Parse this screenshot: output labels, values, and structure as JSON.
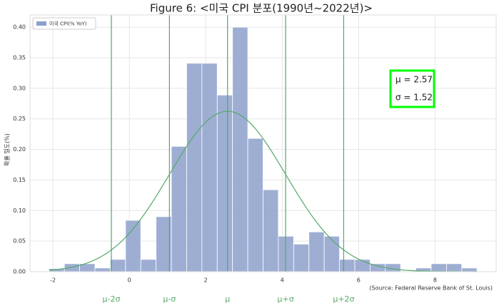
{
  "chart_data": {
    "type": "histogram",
    "title": "Figure 6: <미국 CPI 분포(1990년~2022년)>",
    "ylabel": "확률 밀도(%)",
    "source": "(Source: Federal Reserve Bank of St. Louis)",
    "series": [
      {
        "name": "미국 CPI(% YoY)",
        "color": "#8da0cb",
        "bins": [
          -2.1,
          -1.7,
          -1.3,
          -0.9,
          -0.5,
          -0.1,
          0.3,
          0.7,
          1.1,
          1.5,
          1.9,
          2.3,
          2.7,
          3.1,
          3.5,
          3.9,
          4.3,
          4.7,
          5.1,
          5.5,
          5.9,
          6.3,
          6.7,
          7.1,
          7.5,
          7.9,
          8.3,
          8.7,
          9.1
        ],
        "values": [
          0.005,
          0.013,
          0.013,
          0.006,
          0.02,
          0.084,
          0.02,
          0.09,
          0.205,
          0.341,
          0.341,
          0.289,
          0.4,
          0.218,
          0.134,
          0.058,
          0.045,
          0.065,
          0.058,
          0.02,
          0.02,
          0.013,
          0.013,
          0,
          0.006,
          0.013,
          0.013,
          0.006
        ]
      }
    ],
    "fit": {
      "mean": 2.57,
      "std": 1.52,
      "color": "#55a868"
    },
    "vlines": [
      {
        "value": -0.47,
        "label": "μ-2σ"
      },
      {
        "value": 1.05,
        "label": "μ-σ"
      },
      {
        "value": 2.57,
        "label": "μ"
      },
      {
        "value": 4.09,
        "label": "μ+σ"
      },
      {
        "value": 5.61,
        "label": "μ+2σ"
      }
    ],
    "annotations": [
      "μ = 2.57",
      "σ = 1.52"
    ],
    "xlim": [
      -2.6,
      9.6
    ],
    "xticks": [
      -2,
      0,
      2,
      4,
      6,
      8
    ],
    "ylim": [
      0,
      0.42
    ],
    "yticks": [
      {
        "value": 0,
        "label": "0.00"
      },
      {
        "value": 0.05,
        "label": "0.05"
      },
      {
        "value": 0.1,
        "label": "0.10"
      },
      {
        "value": 0.15,
        "label": "0.15"
      },
      {
        "value": 0.2,
        "label": "0.20"
      },
      {
        "value": 0.25,
        "label": "0.25"
      },
      {
        "value": 0.3,
        "label": "0.30"
      },
      {
        "value": 0.35,
        "label": "0.35"
      },
      {
        "value": 0.4,
        "label": "0.40"
      }
    ],
    "grid": true,
    "legend": "upper left"
  }
}
